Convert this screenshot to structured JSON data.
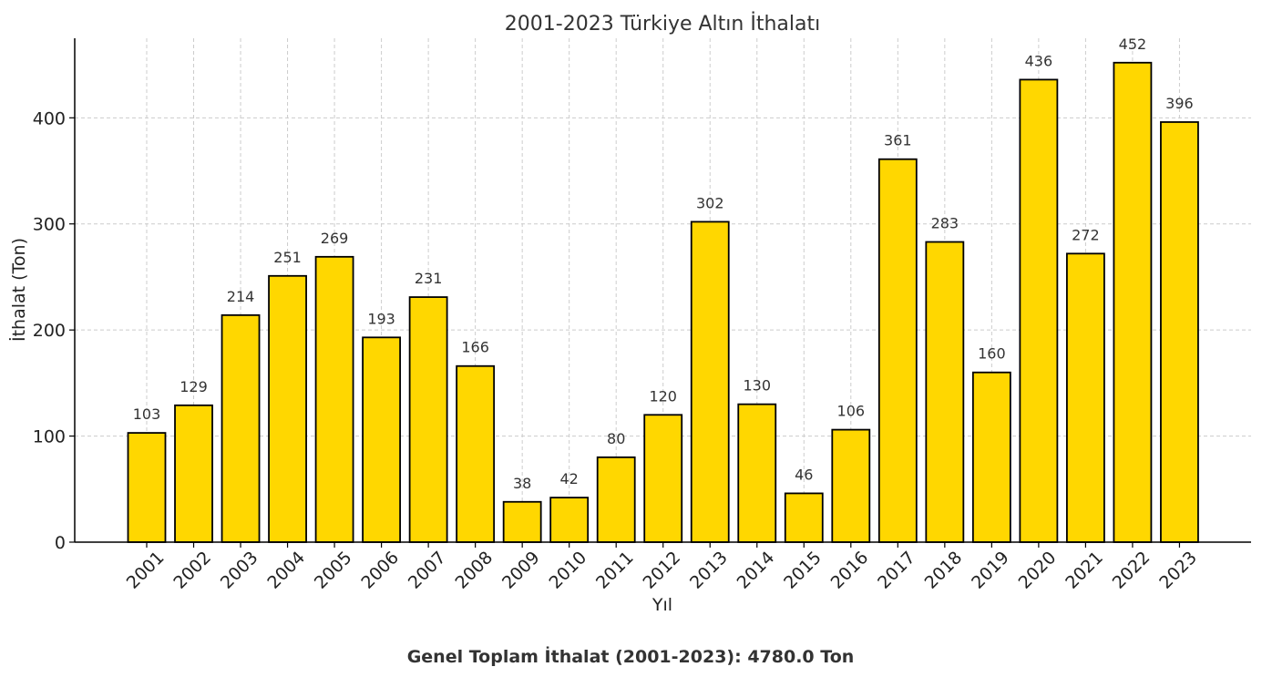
{
  "chart_data": {
    "type": "bar",
    "title": "2001-2023 Türkiye Altın İthalatı",
    "xlabel": "Yıl",
    "ylabel": "İthalat (Ton)",
    "categories": [
      "2001",
      "2002",
      "2003",
      "2004",
      "2005",
      "2006",
      "2007",
      "2008",
      "2009",
      "2010",
      "2011",
      "2012",
      "2013",
      "2014",
      "2015",
      "2016",
      "2017",
      "2018",
      "2019",
      "2020",
      "2021",
      "2022",
      "2023"
    ],
    "values": [
      103,
      129,
      214,
      251,
      269,
      193,
      231,
      166,
      38,
      42,
      80,
      120,
      302,
      130,
      46,
      106,
      361,
      283,
      160,
      436,
      272,
      452,
      396
    ],
    "ylim": [
      0,
      475
    ],
    "yticks": [
      0,
      100,
      200,
      300,
      400
    ],
    "grid": true,
    "bar_color": "#FFD700",
    "edge_color": "#000000",
    "footer_note": "Genel Toplam İthalat (2001-2023): 4780.0 Ton"
  }
}
